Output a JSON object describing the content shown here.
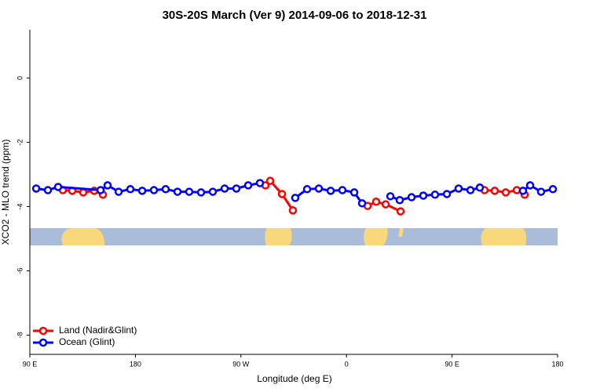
{
  "chart_data": {
    "type": "line",
    "title": "30S-20S March (Ver 9)   2014-09-06 to 2018-12-31",
    "x_label": "Longitude (deg E)",
    "y_label": "XCO2 - MLO trend (ppm)",
    "xlim": [
      90,
      540
    ],
    "xticks": [
      {
        "value": 90,
        "label": "90 E"
      },
      {
        "value": 180,
        "label": "180"
      },
      {
        "value": 270,
        "label": "90 W"
      },
      {
        "value": 360,
        "label": "0"
      },
      {
        "value": 450,
        "label": "90 E"
      },
      {
        "value": 540,
        "label": "180"
      }
    ],
    "ylim": [
      -8.6,
      1.5
    ],
    "yticks": [
      0,
      -2,
      -4,
      -6,
      -8
    ],
    "legend": "bottom-left",
    "series": [
      {
        "name": "Land (Nadir&Glint)",
        "color": "#ff0000",
        "x": [
          118.1,
          126.2,
          135.5,
          144.9,
          152.3,
          null,
          290.9,
          294.9,
          305.0,
          314.3,
          null,
          378.0,
          385.3,
          393.4,
          406.1,
          null,
          477.7,
          486.4,
          495.8,
          505.2,
          511.9
        ],
        "values": [
          -3.49,
          -3.51,
          -3.56,
          -3.51,
          -3.63,
          null,
          -3.34,
          -3.2,
          -3.61,
          -4.12,
          null,
          -3.98,
          -3.85,
          -3.93,
          -4.15,
          null,
          -3.49,
          -3.51,
          -3.56,
          -3.49,
          -3.63
        ]
      },
      {
        "name": "Ocean (Glint)",
        "color": "#0000ff",
        "x": [
          95.4,
          105.4,
          114.1,
          150.3,
          156.3,
          165.7,
          175.7,
          185.8,
          195.8,
          205.8,
          215.9,
          225.9,
          236.0,
          246.0,
          256.1,
          266.1,
          276.2,
          286.2,
          null,
          316.3,
          326.4,
          336.4,
          346.5,
          356.5,
          366.6,
          373.3,
          null,
          397.4,
          405.4,
          415.5,
          425.5,
          435.5,
          445.6,
          455.6,
          465.7,
          473.7,
          null,
          510.5,
          516.6,
          525.9,
          536.0
        ],
        "values": [
          -3.44,
          -3.49,
          -3.39,
          -3.49,
          -3.34,
          -3.54,
          -3.46,
          -3.51,
          -3.49,
          -3.46,
          -3.54,
          -3.54,
          -3.56,
          -3.54,
          -3.44,
          -3.44,
          -3.34,
          -3.27,
          null,
          -3.73,
          -3.46,
          -3.44,
          -3.51,
          -3.49,
          -3.56,
          -3.9,
          null,
          -3.68,
          -3.8,
          -3.71,
          -3.66,
          -3.63,
          -3.61,
          -3.44,
          -3.49,
          -3.41,
          null,
          -3.51,
          -3.34,
          -3.54,
          -3.46
        ]
      }
    ]
  }
}
